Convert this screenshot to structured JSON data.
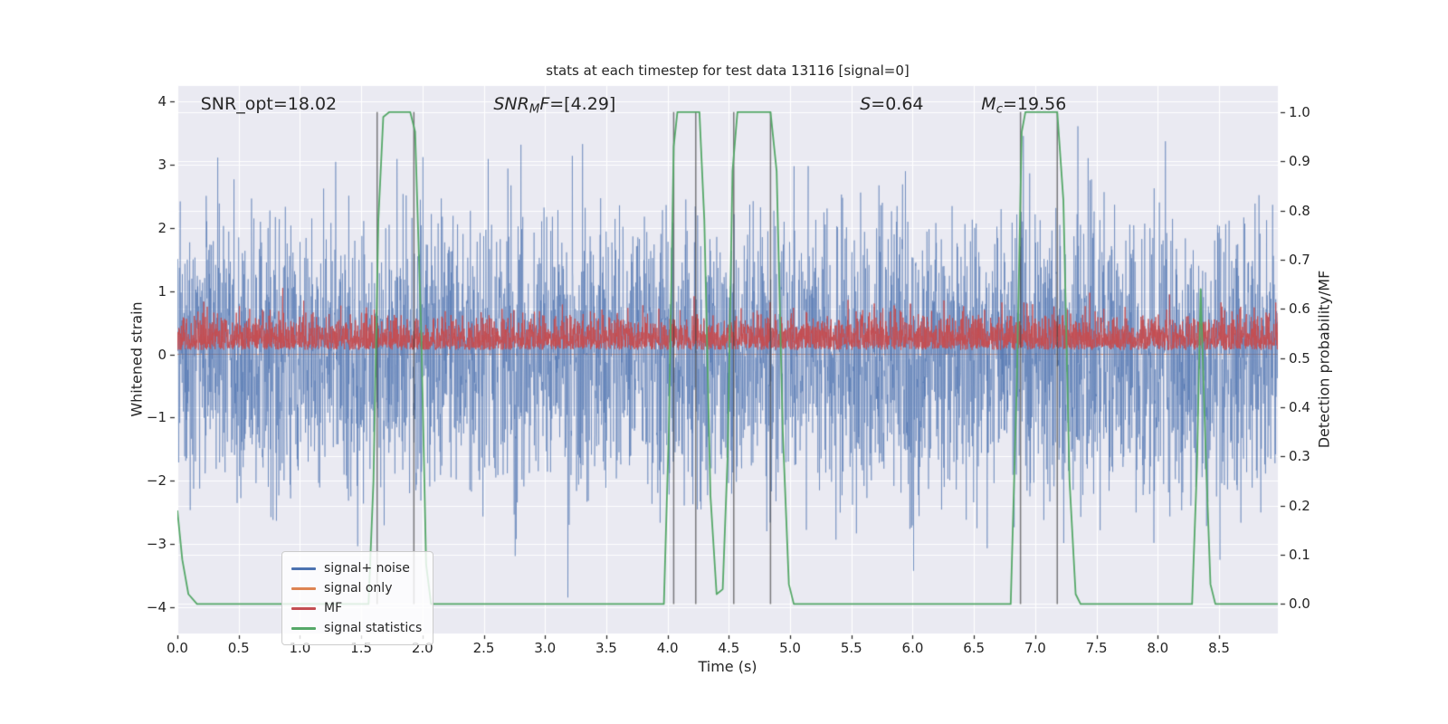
{
  "chart_data": {
    "type": "line",
    "title": "stats at each timestep for test data 13116 [signal=0]",
    "xlabel": "Time (s)",
    "ylabel_left": "Whitened strain",
    "ylabel_right": "Detection probability/MF",
    "xlim": [
      0,
      8.98
    ],
    "ylim_left": [
      -4.42,
      4.25
    ],
    "ylim_right": [
      -0.06,
      1.053
    ],
    "grid": true,
    "x_ticks": [
      0,
      0.5,
      1,
      1.5,
      2,
      2.5,
      3,
      3.5,
      4,
      4.5,
      5,
      5.5,
      6,
      6.5,
      7,
      7.5,
      8,
      8.5
    ],
    "x_tick_labels": [
      "0.0",
      "0.5",
      "1.0",
      "1.5",
      "2.0",
      "2.5",
      "3.0",
      "3.5",
      "4.0",
      "4.5",
      "5.0",
      "5.5",
      "6.0",
      "6.5",
      "7.0",
      "7.5",
      "8.0",
      "8.5"
    ],
    "y_ticks_left": [
      -4,
      -3,
      -2,
      -1,
      0,
      1,
      2,
      3,
      4
    ],
    "y_tick_labels_left": [
      "−4",
      "−3",
      "−2",
      "−1",
      "0",
      "1",
      "2",
      "3",
      "4"
    ],
    "y_ticks_right": [
      0,
      0.1,
      0.2,
      0.3,
      0.4,
      0.5,
      0.6,
      0.7,
      0.8,
      0.9,
      1.0
    ],
    "y_tick_labels_right": [
      "0.0",
      "0.1",
      "0.2",
      "0.3",
      "0.4",
      "0.5",
      "0.6",
      "0.7",
      "0.8",
      "0.9",
      "1.0"
    ],
    "colors": {
      "figure_bg": "#ffffff",
      "axes_bg": "#eaeaf2",
      "grid": "#ffffff",
      "text": "#262626",
      "vline": "rgba(60,60,60,0.65)",
      "blue": "#4C72B0",
      "orange": "#DD8452",
      "red": "#C44E52",
      "green": "#55A868"
    },
    "annotations": [
      {
        "x": 0.19,
        "y": 3.85,
        "parts": [
          {
            "text": "SNR_opt=18.02",
            "style": "normal"
          }
        ]
      },
      {
        "x": 2.58,
        "y": 3.85,
        "parts": [
          {
            "text": "SNR",
            "style": "italic"
          },
          {
            "text": "M",
            "style": "subscript"
          },
          {
            "text": "F",
            "style": "italic"
          },
          {
            "text": "=[4.29]",
            "style": "normal"
          }
        ]
      },
      {
        "x": 5.57,
        "y": 3.85,
        "parts": [
          {
            "text": "S",
            "style": "italic"
          },
          {
            "text": "=0.64",
            "style": "normal"
          }
        ]
      },
      {
        "x": 6.56,
        "y": 3.85,
        "parts": [
          {
            "text": "M",
            "style": "italic"
          },
          {
            "text": "c",
            "style": "subscript"
          },
          {
            "text": "=19.56",
            "style": "normal"
          }
        ]
      }
    ],
    "vlines": {
      "x": [
        1.63,
        1.93,
        4.05,
        4.23,
        4.54,
        4.84,
        6.88,
        7.18
      ],
      "span_right_axis": [
        0,
        1
      ]
    },
    "legend": {
      "position": "lower-left",
      "entries": [
        {
          "label": "signal+ noise",
          "color": "#4C72B0"
        },
        {
          "label": "signal only",
          "color": "#DD8452"
        },
        {
          "label": "MF",
          "color": "#C44E52"
        },
        {
          "label": "signal statistics",
          "color": "#55A868"
        }
      ]
    },
    "series": [
      {
        "name": "signal only",
        "axis": "left",
        "type": "flat",
        "color": "#DD8452",
        "value": 0,
        "alpha": 0.9,
        "line_width": 1
      },
      {
        "name": "signal+ noise",
        "axis": "left",
        "type": "gaussian-noise",
        "color": "#4C72B0",
        "mean": 0,
        "std": 1.08,
        "clip": 3.85,
        "n_points": 4200,
        "seed": 13116,
        "alpha": 0.5,
        "line_width": 1
      },
      {
        "name": "MF",
        "axis": "left",
        "type": "abs-noise",
        "color": "#C44E52",
        "base": 0.07,
        "scale": 0.26,
        "clip_max": 1.08,
        "n_points": 4200,
        "seed": 4242,
        "alpha": 0.92,
        "line_width": 1
      },
      {
        "name": "signal statistics",
        "axis": "right",
        "type": "line",
        "color": "#55A868",
        "alpha": 1,
        "line_width": 1.8,
        "points": [
          [
            0.0,
            0.19
          ],
          [
            0.04,
            0.09
          ],
          [
            0.09,
            0.02
          ],
          [
            0.16,
            0.0
          ],
          [
            1.56,
            0.0
          ],
          [
            1.6,
            0.25
          ],
          [
            1.64,
            0.78
          ],
          [
            1.68,
            0.99
          ],
          [
            1.73,
            1.0
          ],
          [
            1.9,
            1.0
          ],
          [
            1.94,
            0.96
          ],
          [
            1.99,
            0.55
          ],
          [
            2.03,
            0.08
          ],
          [
            2.07,
            0.0
          ],
          [
            3.97,
            0.0
          ],
          [
            4.01,
            0.35
          ],
          [
            4.05,
            0.93
          ],
          [
            4.08,
            1.0
          ],
          [
            4.26,
            1.0
          ],
          [
            4.3,
            0.78
          ],
          [
            4.35,
            0.22
          ],
          [
            4.4,
            0.02
          ],
          [
            4.45,
            0.03
          ],
          [
            4.49,
            0.3
          ],
          [
            4.53,
            0.88
          ],
          [
            4.57,
            1.0
          ],
          [
            4.84,
            1.0
          ],
          [
            4.89,
            0.88
          ],
          [
            4.94,
            0.35
          ],
          [
            4.99,
            0.04
          ],
          [
            5.03,
            0.0
          ],
          [
            6.8,
            0.0
          ],
          [
            6.85,
            0.45
          ],
          [
            6.89,
            0.96
          ],
          [
            6.92,
            1.0
          ],
          [
            7.18,
            1.0
          ],
          [
            7.23,
            0.82
          ],
          [
            7.28,
            0.25
          ],
          [
            7.33,
            0.02
          ],
          [
            7.37,
            0.0
          ],
          [
            8.28,
            0.0
          ],
          [
            8.32,
            0.28
          ],
          [
            8.35,
            0.64
          ],
          [
            8.39,
            0.32
          ],
          [
            8.43,
            0.04
          ],
          [
            8.47,
            0.0
          ],
          [
            8.98,
            0.0
          ]
        ]
      }
    ]
  }
}
